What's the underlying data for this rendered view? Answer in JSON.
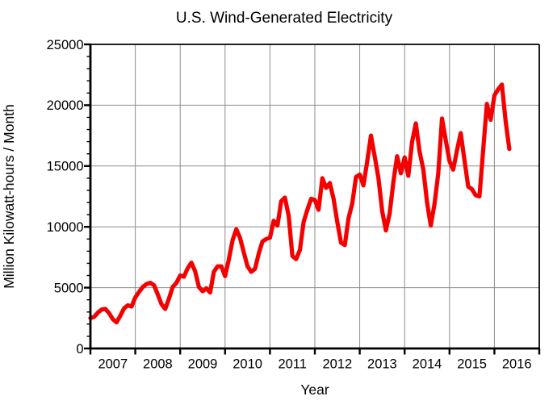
{
  "title": "U.S. Wind-Generated Electricity",
  "xlabel": "Year",
  "ylabel": "Million Kilowatt-hours / Month",
  "chart_data": {
    "type": "line",
    "series_name": "U.S. monthly wind-generated electricity",
    "unit": "million kilowatt-hours per month",
    "period": "monthly",
    "start": "2007-01",
    "end": "2016-05",
    "values": [
      2500,
      2600,
      2950,
      3200,
      3250,
      2900,
      2400,
      2150,
      2700,
      3300,
      3550,
      3450,
      4200,
      4650,
      5050,
      5300,
      5400,
      5200,
      4450,
      3650,
      3250,
      4100,
      5050,
      5400,
      6000,
      5900,
      6600,
      7050,
      6350,
      5050,
      4700,
      4950,
      4600,
      6300,
      6750,
      6750,
      5950,
      7300,
      8900,
      9800,
      9100,
      7900,
      6750,
      6300,
      6550,
      7800,
      8800,
      9000,
      9100,
      10500,
      10100,
      12100,
      12400,
      10900,
      7600,
      7350,
      8100,
      10400,
      11400,
      12300,
      12200,
      11400,
      14000,
      13200,
      13600,
      12300,
      10400,
      8700,
      8500,
      10700,
      11900,
      14100,
      14300,
      13400,
      15400,
      17500,
      15800,
      14000,
      11300,
      9700,
      11100,
      13700,
      15800,
      14400,
      15700,
      14200,
      17000,
      18500,
      16200,
      14700,
      12000,
      10100,
      11900,
      14400,
      18900,
      17100,
      15400,
      14700,
      16300,
      17700,
      15500,
      13300,
      13100,
      12600,
      12500,
      16300,
      20100,
      18800,
      20800,
      21300,
      21700,
      18700,
      16400
    ],
    "xlim": [
      2007,
      2017
    ],
    "ylim": [
      0,
      25000
    ],
    "x_tick_years": [
      "2007",
      "2008",
      "2009",
      "2010",
      "2011",
      "2012",
      "2013",
      "2014",
      "2015",
      "2016"
    ],
    "y_ticks": [
      0,
      5000,
      10000,
      15000,
      20000,
      25000
    ],
    "y_minor_step": 1000,
    "grid": true,
    "legend": "none",
    "line_color": "#f40000",
    "grid_color": "#8c8c8c",
    "axis_color": "#000000",
    "background": "#ffffff"
  }
}
